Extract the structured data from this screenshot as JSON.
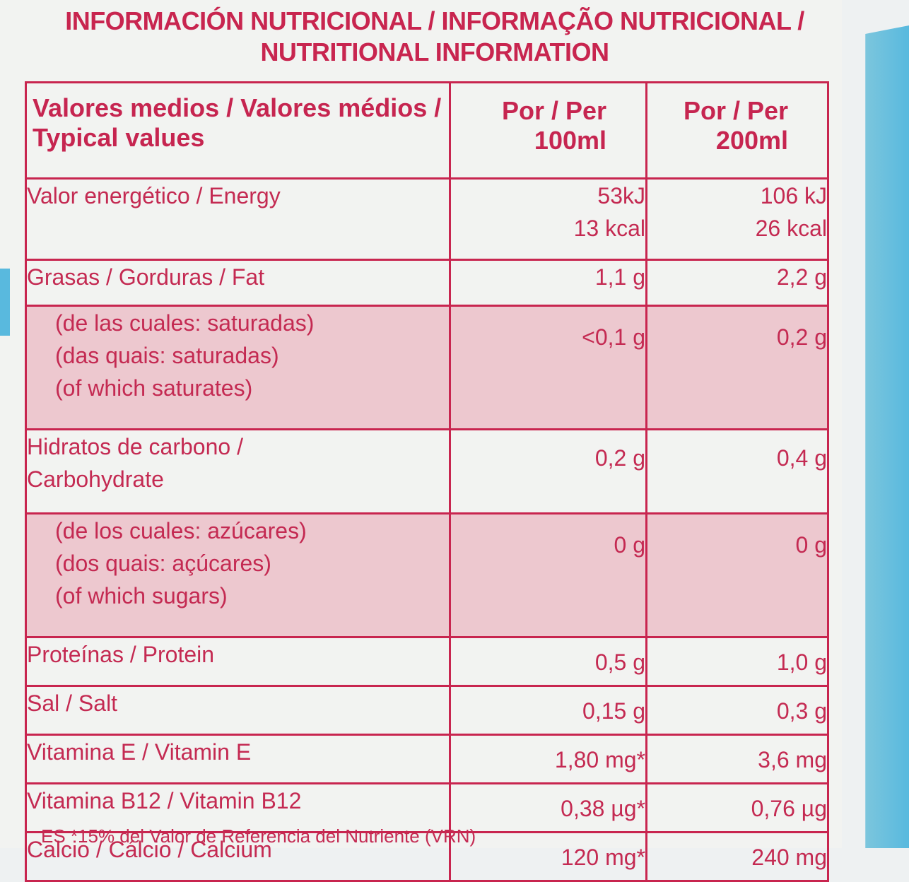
{
  "heading": {
    "line1": "INFORMACIÓN NUTRICIONAL / INFORMAÇÃO NUTRICIONAL /",
    "line2": "NUTRITIONAL INFORMATION"
  },
  "table": {
    "header": {
      "label": "Valores medios / Valores médios / Typical values",
      "col1_line1": "Por / Per",
      "col1_line2": "100ml",
      "col2_line1": "Por / Per",
      "col2_line2": "200ml"
    },
    "rows": {
      "energy": {
        "label": "Valor energético / Energy",
        "v100_kj": "53kJ",
        "v100_kcal": "13 kcal",
        "v200_kj": "106 kJ",
        "v200_kcal": "26 kcal"
      },
      "fat": {
        "label": "Grasas / Gorduras / Fat",
        "v100": "1,1 g",
        "v200": "2,2 g"
      },
      "saturates": {
        "label_es": "(de las cuales: saturadas)",
        "label_pt": "(das quais: saturadas)",
        "label_en": "(of which saturates)",
        "v100": "<0,1 g",
        "v200": "0,2 g"
      },
      "carbohydrate": {
        "label_line1": "Hidratos de carbono /",
        "label_line2": "Carbohydrate",
        "v100": "0,2 g",
        "v200": "0,4 g"
      },
      "sugars": {
        "label_es": "(de los cuales: azúcares)",
        "label_pt": "(dos quais: açúcares)",
        "label_en": "(of which sugars)",
        "v100": "0 g",
        "v200": "0 g"
      },
      "protein": {
        "label": "Proteínas / Protein",
        "v100": "0,5 g",
        "v200": "1,0 g"
      },
      "salt": {
        "label": "Sal / Salt",
        "v100": "0,15 g",
        "v200": "0,3 g"
      },
      "vitamin_e": {
        "label": "Vitamina E / Vitamin E",
        "v100": "1,80 mg*",
        "v200": "3,6 mg"
      },
      "vitamin_b12": {
        "label": "Vitamina B12 / Vitamin B12",
        "v100": "0,38 µg*",
        "v200": "0,76 µg"
      },
      "calcium": {
        "label": "Calcio / Cálcio / Calcium",
        "v100": "120 mg*",
        "v200": "240 mg"
      }
    }
  },
  "footnote": "ES *15% del Valor de Referencia del Nutriente (VRN)",
  "colors": {
    "text": "#c42a52",
    "rules": "#c8254f",
    "shaded_row": "#edc8cf",
    "carton_blue": "#58b9de",
    "background": "#f2f3f1"
  }
}
